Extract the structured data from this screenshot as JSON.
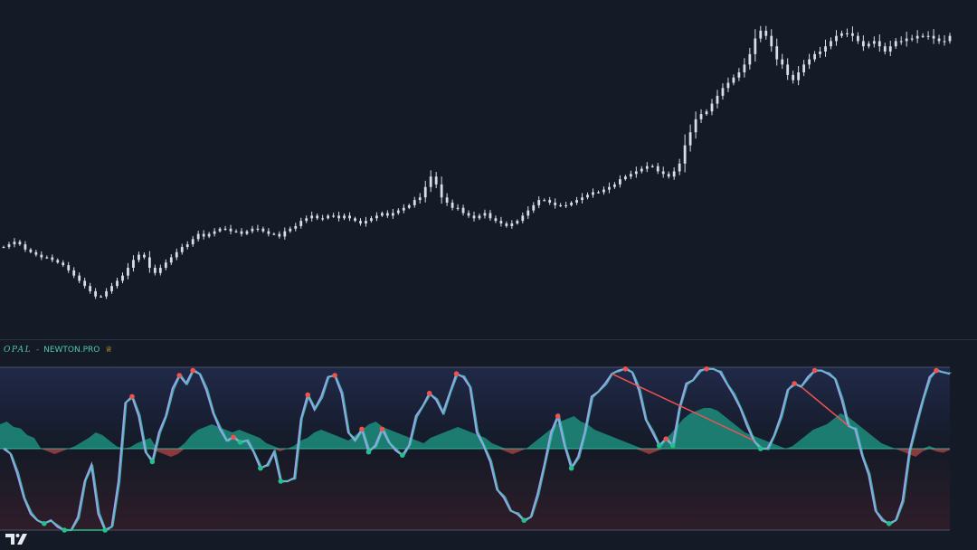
{
  "indicator": {
    "name": "OPAL",
    "separator": "-",
    "source": "NEWTON.PRO",
    "badge_icon": "crown-icon"
  },
  "branding": {
    "logo": "tradingview-logo"
  },
  "colors": {
    "background": "#141a26",
    "candle": "#d9dde6",
    "bull": "#22c08a",
    "bear": "#ef5350",
    "osc_line": "#9aa3e8",
    "osc_fast": "#3cc9b2",
    "histogram": "#1f9c88",
    "band_lines": "#4a5264",
    "divergence": "#ef5350"
  },
  "chart_data": [
    {
      "type": "candlestick",
      "title": "",
      "close": [
        88,
        89,
        90,
        89,
        87,
        86,
        85,
        84,
        84,
        83,
        82,
        81,
        79,
        77,
        75,
        73,
        71,
        69,
        69,
        71,
        73,
        75,
        77,
        80,
        83,
        85,
        84,
        80,
        78,
        80,
        82,
        84,
        86,
        88,
        89,
        91,
        93,
        92,
        93,
        94,
        95,
        95,
        94,
        94,
        93,
        94,
        95,
        95,
        94,
        93,
        93,
        92,
        94,
        95,
        96,
        98,
        99,
        100,
        99,
        99,
        100,
        100,
        99,
        100,
        99,
        98,
        97,
        98,
        99,
        100,
        101,
        100,
        101,
        102,
        103,
        104,
        106,
        107,
        111,
        115,
        112,
        107,
        105,
        103,
        103,
        101,
        100,
        99,
        100,
        101,
        99,
        98,
        97,
        96,
        97,
        98,
        100,
        102,
        104,
        106,
        106,
        105,
        104,
        104,
        104,
        105,
        106,
        107,
        108,
        109,
        109,
        110,
        111,
        112,
        114,
        115,
        116,
        117,
        118,
        119,
        119,
        117,
        116,
        115,
        117,
        120,
        127,
        132,
        137,
        139,
        140,
        143,
        146,
        149,
        151,
        153,
        155,
        158,
        162,
        168,
        171,
        169,
        165,
        160,
        158,
        154,
        152,
        155,
        158,
        160,
        162,
        163,
        165,
        167,
        169,
        170,
        170,
        169,
        167,
        165,
        166,
        167,
        165,
        163,
        165,
        167,
        167,
        168,
        168,
        169,
        169,
        169,
        168,
        167,
        167,
        169
      ],
      "high_low_spread_pct": 1.2,
      "ylim": [
        55,
        180
      ],
      "grid": false
    },
    {
      "type": "oscillator",
      "title": "",
      "ylim": [
        0,
        100
      ],
      "levels": {
        "upper": 100,
        "mid": 50,
        "lower": 0
      },
      "series": [
        {
          "values": [
            50,
            47,
            35,
            20,
            10,
            6,
            4,
            6,
            2,
            0,
            0,
            8,
            30,
            40,
            10,
            0,
            2,
            30,
            78,
            82,
            70,
            48,
            42,
            60,
            70,
            87,
            95,
            90,
            98,
            96,
            86,
            72,
            62,
            55,
            57,
            54,
            55,
            48,
            38,
            40,
            48,
            30,
            30,
            32,
            68,
            83,
            74,
            82,
            94,
            95,
            84,
            60,
            55,
            62,
            48,
            52,
            62,
            54,
            49,
            46,
            52,
            70,
            76,
            84,
            80,
            72,
            84,
            96,
            94,
            88,
            60,
            52,
            42,
            25,
            20,
            12,
            10,
            6,
            8,
            22,
            40,
            60,
            70,
            52,
            38,
            45,
            60,
            82,
            85,
            90,
            96,
            98,
            99,
            97,
            86,
            68,
            60,
            52,
            56,
            52,
            75,
            90,
            92,
            98,
            99,
            99,
            97,
            90,
            83,
            75,
            64,
            55,
            50,
            50,
            58,
            70,
            86,
            90,
            88,
            94,
            98,
            98,
            96,
            93,
            80,
            64,
            62,
            46,
            34,
            12,
            6,
            4,
            6,
            18,
            48,
            65,
            80,
            94,
            98,
            97,
            96
          ]
        }
      ],
      "histogram": [
        18,
        20,
        16,
        15,
        10,
        8,
        0,
        -2,
        -4,
        -2,
        0,
        2,
        5,
        8,
        12,
        10,
        6,
        2,
        0,
        1,
        4,
        6,
        8,
        -2,
        -4,
        -6,
        -4,
        4,
        10,
        14,
        16,
        18,
        16,
        14,
        12,
        14,
        12,
        10,
        8,
        4,
        2,
        -2,
        0,
        2,
        6,
        8,
        12,
        14,
        12,
        10,
        8,
        6,
        10,
        14,
        18,
        20,
        16,
        14,
        12,
        10,
        8,
        6,
        4,
        8,
        10,
        12,
        14,
        16,
        14,
        12,
        10,
        8,
        4,
        2,
        -2,
        -4,
        -2,
        0,
        4,
        8,
        12,
        16,
        20,
        22,
        24,
        20,
        18,
        14,
        12,
        10,
        8,
        6,
        4,
        2,
        -2,
        -4,
        -2,
        6,
        10,
        16,
        22,
        26,
        28,
        30,
        30,
        28,
        24,
        20,
        16,
        12,
        10,
        8,
        6,
        4,
        2,
        0,
        2,
        6,
        10,
        14,
        16,
        18,
        22,
        26,
        24,
        20,
        16,
        12,
        8,
        4,
        2,
        0,
        -2,
        -4,
        -6,
        -2,
        2,
        -2,
        -3,
        -1
      ]
    }
  ]
}
